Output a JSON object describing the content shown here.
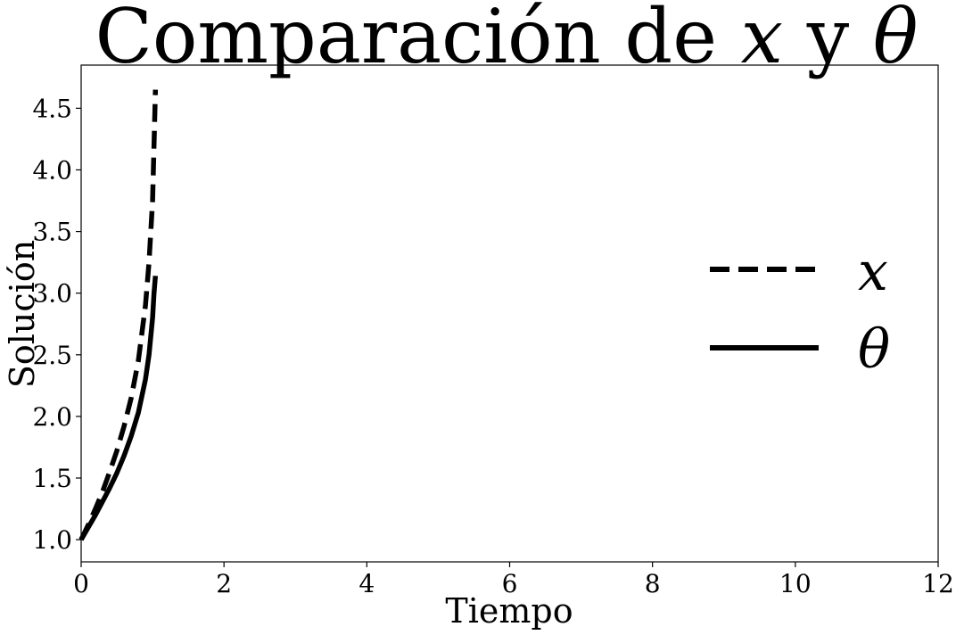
{
  "chart_data": {
    "type": "line",
    "title": {
      "prefix": "Comparación de ",
      "var1": "x",
      "middle": " y ",
      "var2": "θ"
    },
    "xlabel": "Tiempo",
    "ylabel": "Solución",
    "xlim": [
      0,
      12
    ],
    "ylim": [
      0.82,
      4.85
    ],
    "xticks": [
      0,
      2,
      4,
      6,
      8,
      10,
      12
    ],
    "yticks": [
      1.0,
      1.5,
      2.0,
      2.5,
      3.0,
      3.5,
      4.0,
      4.5
    ],
    "grid": false,
    "legend_position": "right",
    "series": [
      {
        "name": "x",
        "style": "dashed",
        "color": "#000000",
        "x": [
          0.0,
          0.1,
          0.2,
          0.3,
          0.4,
          0.5,
          0.6,
          0.7,
          0.8,
          0.9,
          0.95,
          1.0,
          1.02,
          1.04
        ],
        "y": [
          1.0,
          1.12,
          1.25,
          1.39,
          1.55,
          1.72,
          1.92,
          2.15,
          2.45,
          2.9,
          3.25,
          3.75,
          4.2,
          4.65
        ]
      },
      {
        "name": "θ",
        "style": "solid",
        "color": "#000000",
        "x": [
          0.0,
          0.1,
          0.2,
          0.3,
          0.4,
          0.5,
          0.6,
          0.7,
          0.8,
          0.9,
          0.95,
          1.0,
          1.02,
          1.04
        ],
        "y": [
          1.0,
          1.1,
          1.2,
          1.31,
          1.42,
          1.54,
          1.68,
          1.84,
          2.03,
          2.3,
          2.5,
          2.8,
          3.0,
          3.14
        ]
      }
    ]
  }
}
